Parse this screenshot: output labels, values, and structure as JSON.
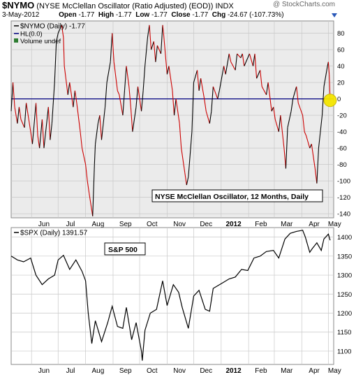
{
  "header": {
    "symbol": "$NYMO",
    "description": "(NYSE McClellan Oscillator (Ratio Adjusted) (EOD))",
    "exchange": "INDX",
    "watermark": "@ StockCharts.com",
    "date": "3-May-2012",
    "quote": {
      "open_label": "Open",
      "open": "-1.77",
      "high_label": "High",
      "high": "-1.77",
      "low_label": "Low",
      "low": "-1.77",
      "close_label": "Close",
      "close": "-1.77",
      "chg_label": "Chg",
      "chg": "-24.67 (-107.73%)"
    }
  },
  "colors": {
    "nymo_line": "#cc0000",
    "nymo_dark": "#000000",
    "zero_line": "#000080",
    "highlight": "#f5e600",
    "grid": "#c8c8c8",
    "plot_bg": "#ebebeb"
  },
  "chart_data": [
    {
      "type": "line",
      "legend": [
        "$NYMO (Daily) -1.77",
        "HL(0.0)",
        "Volume undef"
      ],
      "annotation": "NYSE McClellan Oscillator, 12 Months, Daily",
      "ylim": [
        -145,
        95
      ],
      "yticks": [
        80,
        60,
        40,
        20,
        0,
        -20,
        -40,
        -60,
        -80,
        -100,
        -120,
        -140
      ],
      "xticks": [
        "Jun",
        "Jul",
        "Aug",
        "Sep",
        "Oct",
        "Nov",
        "Dec",
        "2012",
        "Feb",
        "Mar",
        "Apr",
        "May"
      ],
      "x_range": [
        "2011-05-09",
        "2012-05-07"
      ],
      "reference_line": 0,
      "series": [
        {
          "name": "$NYMO (Daily)",
          "points": [
            [
              "2011-05-09",
              -15
            ],
            [
              "2011-05-11",
              20
            ],
            [
              "2011-05-13",
              -10
            ],
            [
              "2011-05-16",
              -30
            ],
            [
              "2011-05-18",
              -10
            ],
            [
              "2011-05-20",
              -25
            ],
            [
              "2011-05-24",
              -35
            ],
            [
              "2011-05-26",
              -5
            ],
            [
              "2011-05-31",
              -40
            ],
            [
              "2011-06-02",
              -55
            ],
            [
              "2011-06-06",
              -5
            ],
            [
              "2011-06-08",
              -45
            ],
            [
              "2011-06-10",
              -60
            ],
            [
              "2011-06-13",
              -25
            ],
            [
              "2011-06-15",
              -60
            ],
            [
              "2011-06-17",
              -40
            ],
            [
              "2011-06-20",
              -10
            ],
            [
              "2011-06-22",
              -50
            ],
            [
              "2011-06-24",
              -30
            ],
            [
              "2011-06-27",
              20
            ],
            [
              "2011-06-29",
              70
            ],
            [
              "2011-07-01",
              80
            ],
            [
              "2011-07-05",
              90
            ],
            [
              "2011-07-07",
              75
            ],
            [
              "2011-07-08",
              40
            ],
            [
              "2011-07-12",
              5
            ],
            [
              "2011-07-14",
              20
            ],
            [
              "2011-07-18",
              -10
            ],
            [
              "2011-07-20",
              10
            ],
            [
              "2011-07-22",
              -5
            ],
            [
              "2011-07-26",
              -40
            ],
            [
              "2011-07-28",
              -60
            ],
            [
              "2011-08-01",
              -80
            ],
            [
              "2011-08-03",
              -100
            ],
            [
              "2011-08-05",
              -115
            ],
            [
              "2011-08-09",
              -143
            ],
            [
              "2011-08-11",
              -80
            ],
            [
              "2011-08-12",
              -55
            ],
            [
              "2011-08-15",
              -30
            ],
            [
              "2011-08-17",
              -20
            ],
            [
              "2011-08-19",
              -50
            ],
            [
              "2011-08-23",
              -10
            ],
            [
              "2011-08-25",
              20
            ],
            [
              "2011-08-29",
              45
            ],
            [
              "2011-08-31",
              80
            ],
            [
              "2011-09-02",
              45
            ],
            [
              "2011-09-06",
              10
            ],
            [
              "2011-09-08",
              5
            ],
            [
              "2011-09-12",
              -20
            ],
            [
              "2011-09-14",
              10
            ],
            [
              "2011-09-16",
              40
            ],
            [
              "2011-09-19",
              15
            ],
            [
              "2011-09-21",
              -10
            ],
            [
              "2011-09-23",
              -40
            ],
            [
              "2011-09-27",
              -10
            ],
            [
              "2011-09-29",
              15
            ],
            [
              "2011-10-03",
              -15
            ],
            [
              "2011-10-05",
              10
            ],
            [
              "2011-10-07",
              40
            ],
            [
              "2011-10-10",
              75
            ],
            [
              "2011-10-12",
              90
            ],
            [
              "2011-10-14",
              60
            ],
            [
              "2011-10-17",
              70
            ],
            [
              "2011-10-19",
              45
            ],
            [
              "2011-10-21",
              65
            ],
            [
              "2011-10-25",
              55
            ],
            [
              "2011-10-27",
              90
            ],
            [
              "2011-10-28",
              80
            ],
            [
              "2011-11-01",
              30
            ],
            [
              "2011-11-03",
              40
            ],
            [
              "2011-11-07",
              10
            ],
            [
              "2011-11-09",
              -20
            ],
            [
              "2011-11-11",
              0
            ],
            [
              "2011-11-15",
              -30
            ],
            [
              "2011-11-17",
              -60
            ],
            [
              "2011-11-21",
              -90
            ],
            [
              "2011-11-23",
              -105
            ],
            [
              "2011-11-25",
              -95
            ],
            [
              "2011-11-29",
              -40
            ],
            [
              "2011-12-01",
              20
            ],
            [
              "2011-12-05",
              35
            ],
            [
              "2011-12-07",
              10
            ],
            [
              "2011-12-09",
              25
            ],
            [
              "2011-12-13",
              0
            ],
            [
              "2011-12-15",
              -15
            ],
            [
              "2011-12-19",
              -30
            ],
            [
              "2011-12-21",
              -15
            ],
            [
              "2011-12-23",
              15
            ],
            [
              "2011-12-28",
              0
            ],
            [
              "2011-12-30",
              10
            ],
            [
              "2012-01-04",
              40
            ],
            [
              "2012-01-06",
              30
            ],
            [
              "2012-01-10",
              55
            ],
            [
              "2012-01-12",
              45
            ],
            [
              "2012-01-17",
              35
            ],
            [
              "2012-01-19",
              55
            ],
            [
              "2012-01-23",
              50
            ],
            [
              "2012-01-25",
              55
            ],
            [
              "2012-01-27",
              40
            ],
            [
              "2012-01-31",
              50
            ],
            [
              "2012-02-02",
              55
            ],
            [
              "2012-02-06",
              40
            ],
            [
              "2012-02-08",
              55
            ],
            [
              "2012-02-10",
              25
            ],
            [
              "2012-02-14",
              35
            ],
            [
              "2012-02-16",
              15
            ],
            [
              "2012-02-21",
              5
            ],
            [
              "2012-02-23",
              20
            ],
            [
              "2012-02-27",
              -15
            ],
            [
              "2012-02-29",
              -10
            ],
            [
              "2012-03-02",
              -25
            ],
            [
              "2012-03-06",
              -40
            ],
            [
              "2012-03-08",
              -20
            ],
            [
              "2012-03-12",
              -60
            ],
            [
              "2012-03-14",
              -85
            ],
            [
              "2012-03-16",
              -35
            ],
            [
              "2012-03-20",
              -15
            ],
            [
              "2012-03-22",
              0
            ],
            [
              "2012-03-26",
              15
            ],
            [
              "2012-03-28",
              -5
            ],
            [
              "2012-04-02",
              -20
            ],
            [
              "2012-04-04",
              -40
            ],
            [
              "2012-04-06",
              -45
            ],
            [
              "2012-04-10",
              -60
            ],
            [
              "2012-04-12",
              -55
            ],
            [
              "2012-04-16",
              -85
            ],
            [
              "2012-04-18",
              -103
            ],
            [
              "2012-04-20",
              -60
            ],
            [
              "2012-04-24",
              -20
            ],
            [
              "2012-04-26",
              15
            ],
            [
              "2012-04-30",
              40
            ],
            [
              "2012-05-01",
              45
            ],
            [
              "2012-05-02",
              30
            ],
            [
              "2012-05-03",
              -1.77
            ]
          ]
        }
      ]
    },
    {
      "type": "line",
      "legend": [
        "$SPX (Daily) 1391.57"
      ],
      "annotation": "S&P 500",
      "ylim": [
        1065,
        1425
      ],
      "yticks": [
        1400,
        1350,
        1300,
        1250,
        1200,
        1150,
        1100
      ],
      "xticks": [
        "Jun",
        "Jul",
        "Aug",
        "Sep",
        "Oct",
        "Nov",
        "Dec",
        "2012",
        "Feb",
        "Mar",
        "Apr",
        "May"
      ],
      "x_range": [
        "2011-05-09",
        "2012-05-07"
      ],
      "series": [
        {
          "name": "$SPX (Daily)",
          "points": [
            [
              "2011-05-09",
              1350
            ],
            [
              "2011-05-16",
              1340
            ],
            [
              "2011-05-23",
              1335
            ],
            [
              "2011-05-31",
              1345
            ],
            [
              "2011-06-06",
              1300
            ],
            [
              "2011-06-13",
              1275
            ],
            [
              "2011-06-20",
              1290
            ],
            [
              "2011-06-27",
              1300
            ],
            [
              "2011-07-01",
              1340
            ],
            [
              "2011-07-07",
              1352
            ],
            [
              "2011-07-14",
              1315
            ],
            [
              "2011-07-21",
              1340
            ],
            [
              "2011-07-28",
              1310
            ],
            [
              "2011-08-01",
              1285
            ],
            [
              "2011-08-04",
              1200
            ],
            [
              "2011-08-08",
              1120
            ],
            [
              "2011-08-10",
              1150
            ],
            [
              "2011-08-12",
              1180
            ],
            [
              "2011-08-19",
              1125
            ],
            [
              "2011-08-26",
              1175
            ],
            [
              "2011-08-31",
              1218
            ],
            [
              "2011-09-06",
              1165
            ],
            [
              "2011-09-12",
              1160
            ],
            [
              "2011-09-16",
              1215
            ],
            [
              "2011-09-22",
              1130
            ],
            [
              "2011-09-27",
              1175
            ],
            [
              "2011-10-03",
              1100
            ],
            [
              "2011-10-04",
              1075
            ],
            [
              "2011-10-07",
              1155
            ],
            [
              "2011-10-13",
              1200
            ],
            [
              "2011-10-20",
              1210
            ],
            [
              "2011-10-27",
              1285
            ],
            [
              "2011-11-01",
              1220
            ],
            [
              "2011-11-08",
              1275
            ],
            [
              "2011-11-14",
              1255
            ],
            [
              "2011-11-18",
              1215
            ],
            [
              "2011-11-25",
              1160
            ],
            [
              "2011-12-01",
              1245
            ],
            [
              "2011-12-07",
              1260
            ],
            [
              "2011-12-14",
              1210
            ],
            [
              "2011-12-19",
              1205
            ],
            [
              "2011-12-23",
              1265
            ],
            [
              "2012-01-03",
              1280
            ],
            [
              "2012-01-10",
              1290
            ],
            [
              "2012-01-17",
              1295
            ],
            [
              "2012-01-24",
              1315
            ],
            [
              "2012-01-31",
              1312
            ],
            [
              "2012-02-07",
              1345
            ],
            [
              "2012-02-14",
              1350
            ],
            [
              "2012-02-21",
              1362
            ],
            [
              "2012-02-29",
              1365
            ],
            [
              "2012-03-06",
              1345
            ],
            [
              "2012-03-13",
              1395
            ],
            [
              "2012-03-19",
              1410
            ],
            [
              "2012-03-26",
              1415
            ],
            [
              "2012-04-02",
              1418
            ],
            [
              "2012-04-05",
              1400
            ],
            [
              "2012-04-10",
              1360
            ],
            [
              "2012-04-13",
              1370
            ],
            [
              "2012-04-18",
              1385
            ],
            [
              "2012-04-23",
              1365
            ],
            [
              "2012-04-26",
              1395
            ],
            [
              "2012-05-01",
              1408
            ],
            [
              "2012-05-03",
              1391.57
            ]
          ]
        }
      ]
    }
  ]
}
